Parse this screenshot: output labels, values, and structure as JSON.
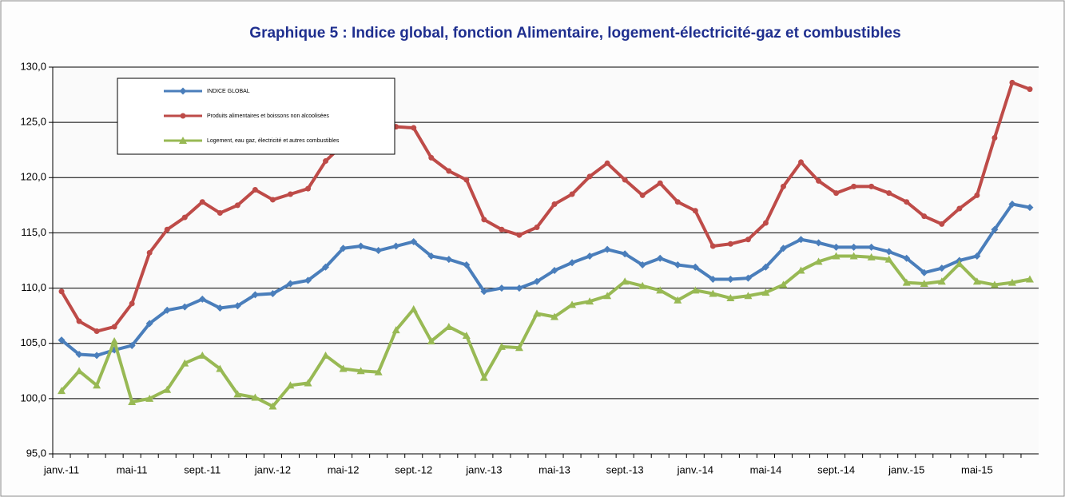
{
  "chart_data": {
    "type": "line",
    "title": "Graphique 5 : Indice global, fonction Alimentaire, logement-électricité-gaz et combustibles",
    "categories": [
      "janv.-11",
      null,
      null,
      null,
      "mai-11",
      null,
      null,
      null,
      "sept.-11",
      null,
      null,
      null,
      "janv.-12",
      null,
      null,
      null,
      "mai-12",
      null,
      null,
      null,
      "sept.-12",
      null,
      null,
      null,
      "janv.-13",
      null,
      null,
      null,
      "mai-13",
      null,
      null,
      null,
      "sept.-13",
      null,
      null,
      null,
      "janv.-14",
      null,
      null,
      null,
      "mai-14",
      null,
      null,
      null,
      "sept.-14",
      null,
      null,
      null,
      "janv.-15",
      null,
      null,
      null,
      "mai-15",
      null,
      null,
      null
    ],
    "series": [
      {
        "name": "INDICE GLOBAL",
        "color": "#4a7ebb",
        "marker": "diamond",
        "values": [
          105.3,
          104.0,
          103.9,
          104.4,
          104.8,
          106.8,
          108.0,
          108.3,
          109.0,
          108.2,
          108.4,
          109.4,
          109.5,
          110.4,
          110.7,
          111.9,
          113.6,
          113.8,
          113.4,
          113.8,
          114.2,
          112.9,
          112.6,
          112.1,
          109.7,
          110.0,
          110.0,
          110.6,
          111.6,
          112.3,
          112.9,
          113.5,
          113.1,
          112.1,
          112.7,
          112.1,
          111.9,
          110.8,
          110.8,
          110.9,
          111.9,
          113.6,
          114.4,
          114.1,
          113.7,
          113.7,
          113.7,
          113.3,
          112.7,
          111.4,
          111.8,
          112.5,
          112.9,
          115.3,
          117.6,
          117.3
        ]
      },
      {
        "name": "Produits alimentaires et boissons non alcoolisées",
        "color": "#be4b48",
        "marker": "circle",
        "values": [
          109.7,
          107.0,
          106.1,
          106.5,
          108.6,
          113.2,
          115.3,
          116.4,
          117.8,
          116.8,
          117.5,
          118.9,
          118.0,
          118.5,
          119.0,
          121.5,
          123.0,
          124.0,
          124.5,
          124.6,
          124.5,
          121.8,
          120.6,
          119.8,
          116.2,
          115.3,
          114.8,
          115.5,
          117.6,
          118.5,
          120.1,
          121.3,
          119.8,
          118.4,
          119.5,
          117.8,
          117.0,
          113.8,
          114.0,
          114.4,
          115.9,
          119.2,
          121.4,
          119.7,
          118.6,
          119.2,
          119.2,
          118.6,
          117.8,
          116.5,
          115.8,
          117.2,
          118.4,
          123.6,
          128.6,
          128.0
        ]
      },
      {
        "name": "Logement, eau gaz, électricité et autres combustibles",
        "color": "#98b954",
        "marker": "triangle",
        "values": [
          100.7,
          102.5,
          101.2,
          105.2,
          99.7,
          100.0,
          100.8,
          103.2,
          103.9,
          102.7,
          100.4,
          100.1,
          99.3,
          101.2,
          101.4,
          103.9,
          102.7,
          102.5,
          102.4,
          106.2,
          108.1,
          105.2,
          106.5,
          105.7,
          101.9,
          104.7,
          104.6,
          107.7,
          107.4,
          108.5,
          108.8,
          109.3,
          110.6,
          110.2,
          109.8,
          108.9,
          109.8,
          109.5,
          109.1,
          109.3,
          109.6,
          110.3,
          111.6,
          112.4,
          112.9,
          112.9,
          112.8,
          112.6,
          110.5,
          110.4,
          110.6,
          112.2,
          110.6,
          110.3,
          110.5,
          110.8
        ]
      }
    ],
    "ylim": [
      95,
      130
    ],
    "yticks": [
      {
        "value": 95,
        "label": "95,0"
      },
      {
        "value": 100,
        "label": "100,0"
      },
      {
        "value": 105,
        "label": "105,0"
      },
      {
        "value": 110,
        "label": "110,0"
      },
      {
        "value": 115,
        "label": "115,0"
      },
      {
        "value": 120,
        "label": "120,0"
      },
      {
        "value": 125,
        "label": "125,0"
      },
      {
        "value": 130,
        "label": "130,0"
      }
    ],
    "grid": true,
    "legend": "top-left"
  }
}
